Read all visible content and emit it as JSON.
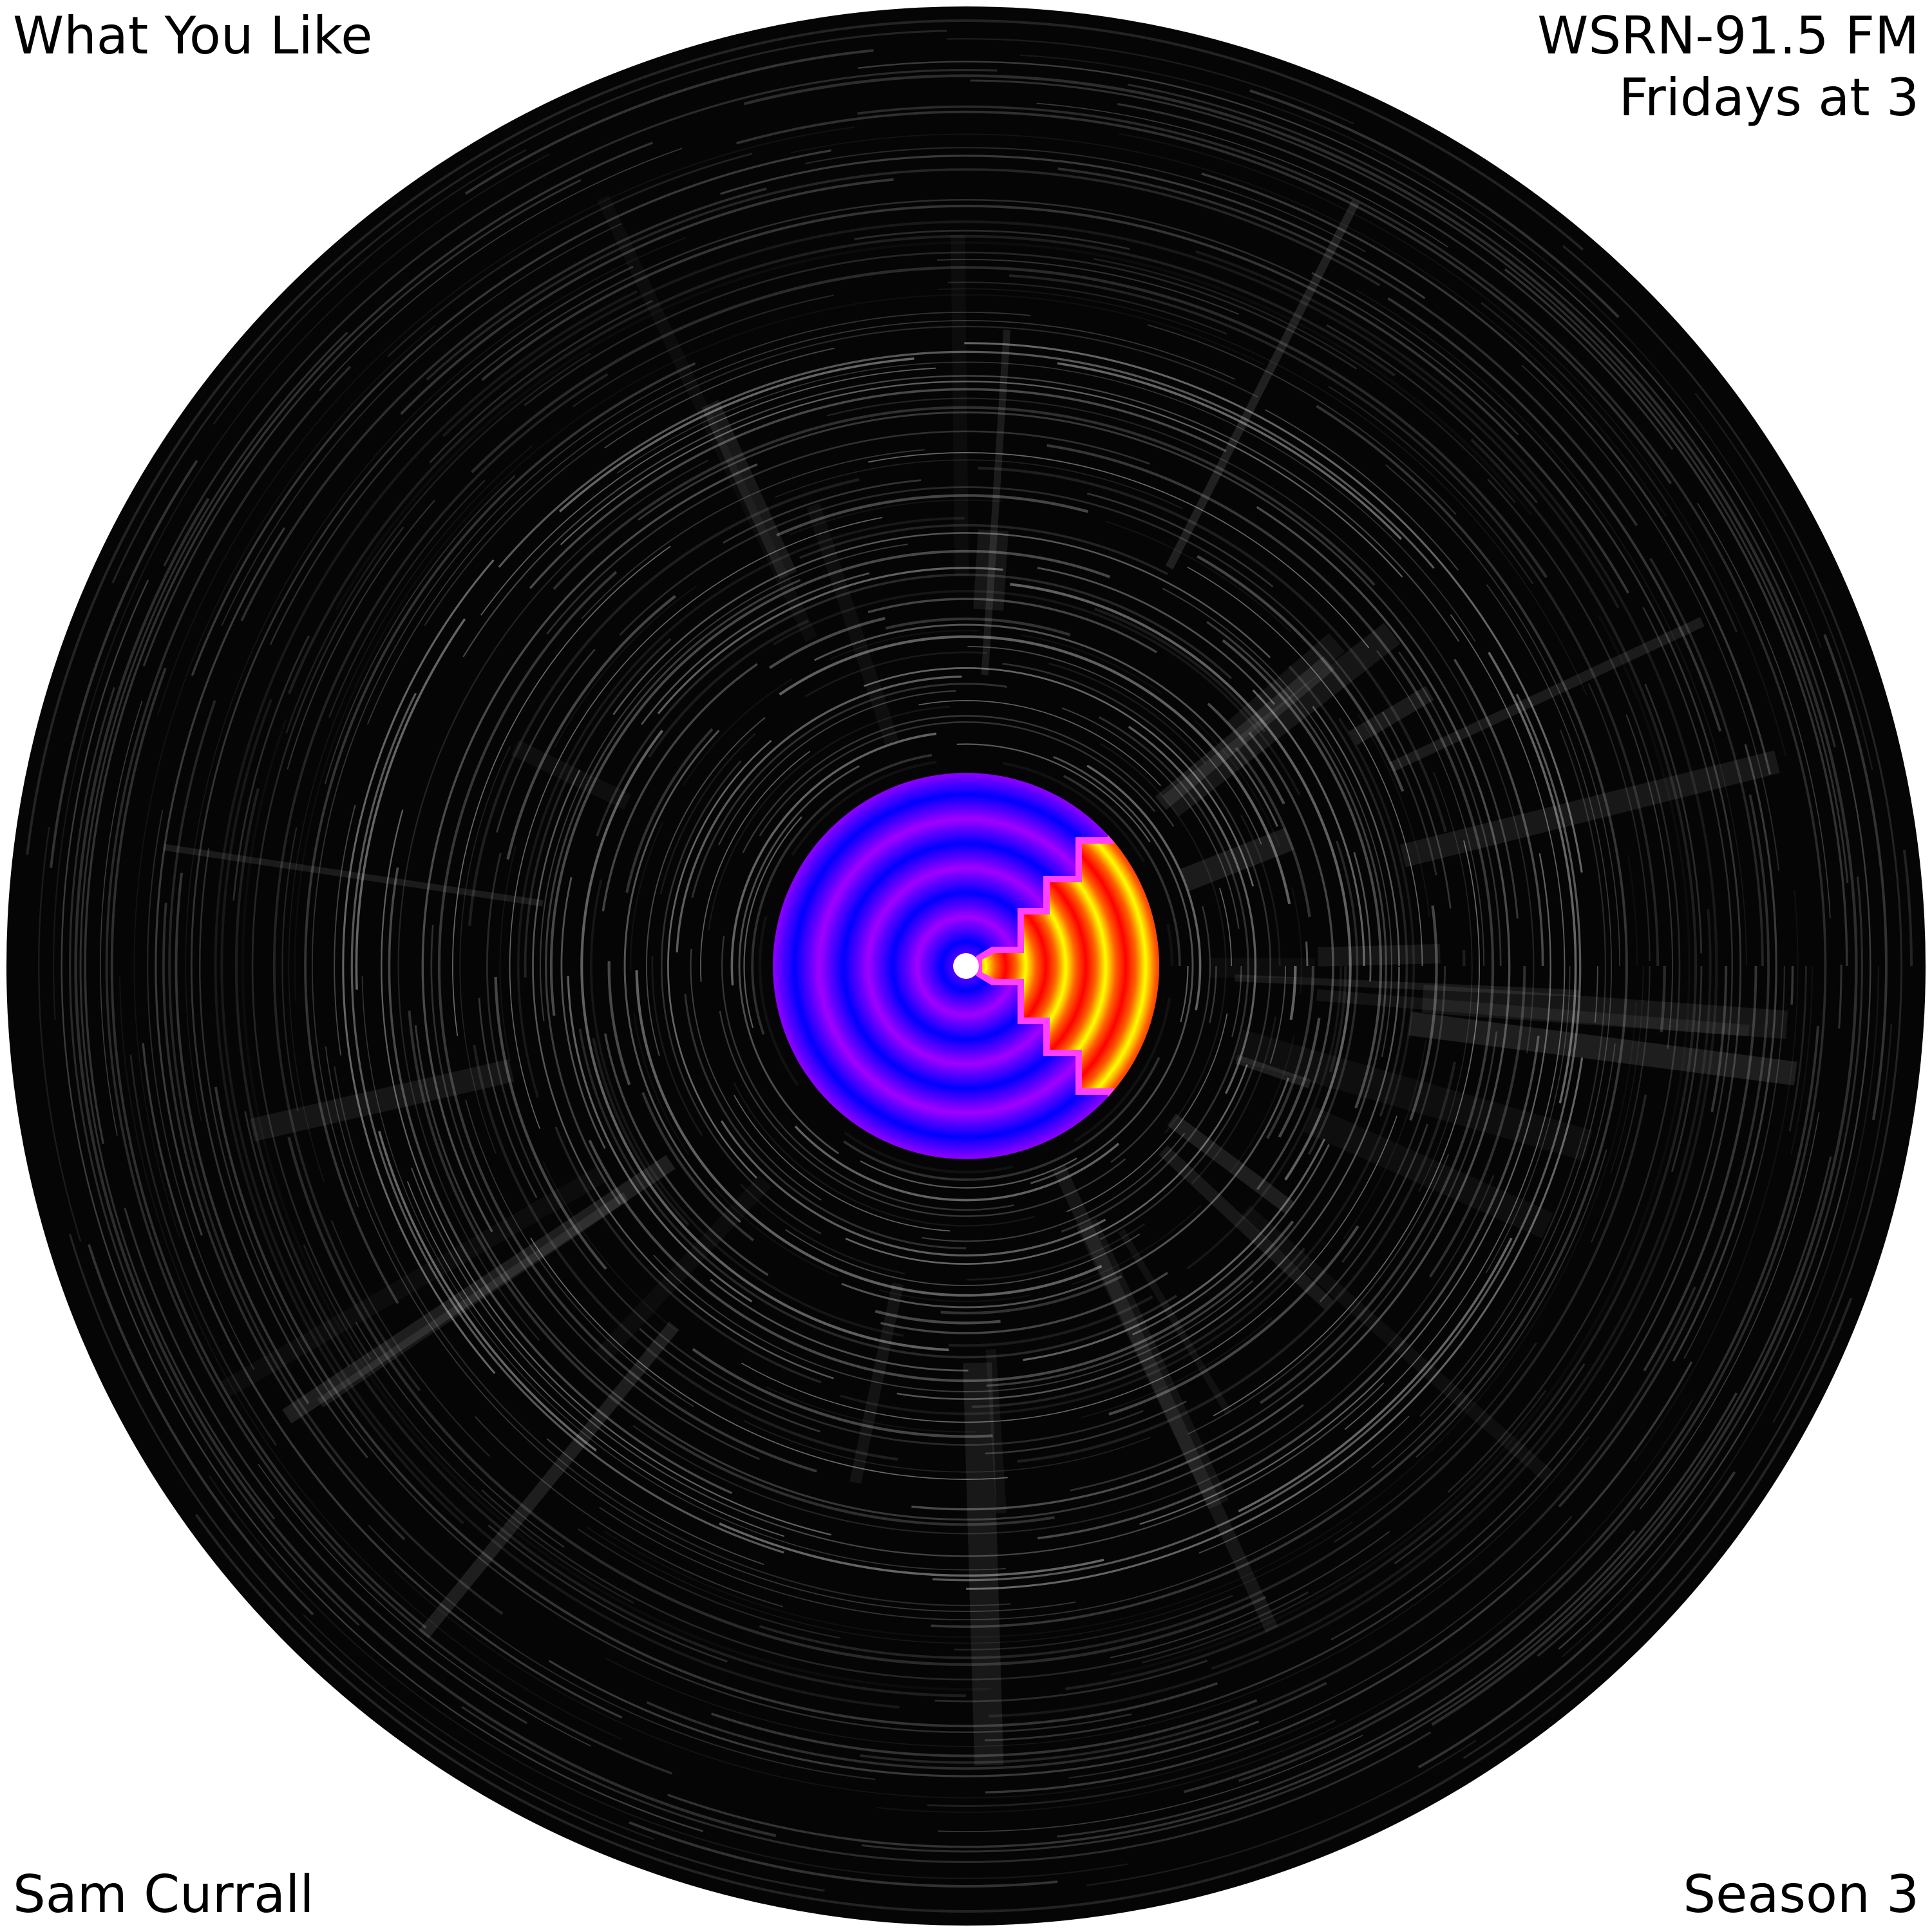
{
  "corners": {
    "top_left": "What You Like",
    "top_right_line1": "WSRN-91.5 FM",
    "top_right_line2": "Fridays at 3",
    "bottom_left": "Sam Currall",
    "bottom_right": "Season 3"
  },
  "record": {
    "vinyl_color": "#050505",
    "groove_color": "#ffffff",
    "label_cool_colors": [
      "#0000ff",
      "#a000ff"
    ],
    "label_warm_colors": [
      "#ff0000",
      "#ff6000",
      "#ffff00"
    ],
    "spindle_color": "#ffffff"
  }
}
